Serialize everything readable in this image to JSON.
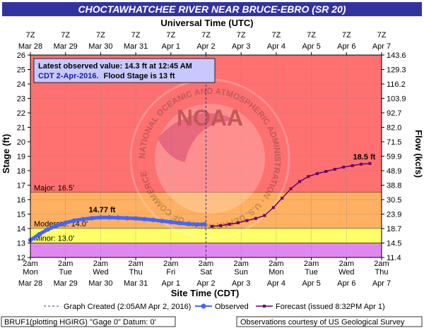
{
  "title": "CHOCTAWHATCHEE RIVER NEAR BRUCE-EBRO (SR 20)",
  "top_axis_title": "Universal Time (UTC)",
  "bottom_axis_title": "Site Time (CDT)",
  "left_axis_title": "Stage (ft)",
  "right_axis_title": "Flow (kcfs)",
  "info_box": {
    "line1": "Latest observed value: 14.3 ft at 12:45 AM",
    "line2_plain": "CDT 2-Apr-2016.",
    "line2_bold": "Flood Stage is 13 ft"
  },
  "footer": {
    "legend_created": "Graph Created (2:05AM Apr 2, 2016)",
    "legend_observed": "Observed",
    "legend_forecast": "Forecast (issued 8:32PM Apr 1)",
    "left_note": "BRUF1(plotting HGIRG) \"Gage 0\" Datum: 0'",
    "right_note": "Observations courtesy of US Geological Survey"
  },
  "watermark": {
    "emblem": "NOAA",
    "ring_text": "NATIONAL OCEANIC AND ATMOSPHERIC ADMINISTRATION · U.S. DEPARTMENT OF COMMERCE"
  },
  "colors": {
    "title_bg": "#3333a0",
    "plot_bg": "#e088f0",
    "major": "#ff7070",
    "moderate": "#ffb060",
    "minor": "#ffff66",
    "observed": "#4466ff",
    "forecast": "#660066",
    "created_line": "#303090",
    "info_box_bg": "#c8c8ff",
    "info_text": "#1a1aaa"
  },
  "chart_data": {
    "type": "line",
    "title": "CHOCTAWHATCHEE RIVER NEAR BRUCE-EBRO (SR 20)",
    "xlabel": "Site Time (CDT)",
    "ylabel": "Stage (ft)",
    "y2label": "Flow (kcfs)",
    "x2label": "Universal Time (UTC)",
    "ylim": [
      12,
      26
    ],
    "y_ticks": [
      12,
      13,
      14,
      15,
      16,
      17,
      18,
      19,
      20,
      21,
      22,
      23,
      24,
      25,
      26
    ],
    "y2_tick_labels": [
      "11.4",
      "14.5",
      "18.7",
      "23.9",
      "30.5",
      "38.8",
      "48.9",
      "59.9",
      "71.5",
      "82.0",
      "92.7",
      "103.9",
      "116.2",
      "129.3",
      "143.6"
    ],
    "x_range_hours": [
      0,
      240
    ],
    "x_ticks": [
      {
        "hour": 0,
        "time": "2am",
        "day": "Mon",
        "date": "Mar 28",
        "utc_time": "7Z",
        "utc_date": "Mar 28"
      },
      {
        "hour": 24,
        "time": "2am",
        "day": "Tue",
        "date": "Mar 29",
        "utc_time": "7Z",
        "utc_date": "Mar 29"
      },
      {
        "hour": 48,
        "time": "2am",
        "day": "Wed",
        "date": "Mar 30",
        "utc_time": "7Z",
        "utc_date": "Mar 30"
      },
      {
        "hour": 72,
        "time": "2am",
        "day": "Thu",
        "date": "Mar 31",
        "utc_time": "7Z",
        "utc_date": "Mar 31"
      },
      {
        "hour": 96,
        "time": "2am",
        "day": "Fri",
        "date": "Apr 1",
        "utc_time": "7Z",
        "utc_date": "Apr 1"
      },
      {
        "hour": 120,
        "time": "2am",
        "day": "Sat",
        "date": "Apr 2",
        "utc_time": "7Z",
        "utc_date": "Apr 2"
      },
      {
        "hour": 144,
        "time": "2am",
        "day": "Sun",
        "date": "Apr 3",
        "utc_time": "7Z",
        "utc_date": "Apr 3"
      },
      {
        "hour": 168,
        "time": "2am",
        "day": "Mon",
        "date": "Apr 4",
        "utc_time": "7Z",
        "utc_date": "Apr 4"
      },
      {
        "hour": 192,
        "time": "2am",
        "day": "Tue",
        "date": "Apr 5",
        "utc_time": "7Z",
        "utc_date": "Apr 5"
      },
      {
        "hour": 216,
        "time": "2am",
        "day": "Wed",
        "date": "Apr 6",
        "utc_time": "7Z",
        "utc_date": "Apr 6"
      },
      {
        "hour": 240,
        "time": "2am",
        "day": "Thu",
        "date": "Apr 7",
        "utc_time": "7Z",
        "utc_date": "Apr 7"
      }
    ],
    "flood_categories": [
      {
        "name": "Major",
        "label": "Major: 16.5'",
        "from": 16.5,
        "to": 26
      },
      {
        "name": "Moderate",
        "label": "Moderate: 14.0'",
        "from": 14.0,
        "to": 16.5
      },
      {
        "name": "Minor",
        "label": "Minor: 13.0'",
        "from": 13.0,
        "to": 14.0
      }
    ],
    "flood_stage": 13,
    "graph_created_hour": 120,
    "series": [
      {
        "name": "Observed",
        "x": [
          0,
          6,
          12,
          18,
          24,
          30,
          36,
          42,
          48,
          54,
          60,
          66,
          72,
          78,
          84,
          90,
          96,
          102,
          108,
          114,
          119
        ],
        "y": [
          13.2,
          13.6,
          13.95,
          14.2,
          14.4,
          14.55,
          14.65,
          14.72,
          14.77,
          14.77,
          14.75,
          14.72,
          14.7,
          14.65,
          14.6,
          14.52,
          14.45,
          14.38,
          14.32,
          14.28,
          14.3
        ],
        "peak_label": "14.77 ft",
        "peak_index": 8
      },
      {
        "name": "Forecast",
        "x": [
          124,
          130,
          136,
          142,
          148,
          154,
          160,
          166,
          172,
          178,
          184,
          190,
          196,
          202,
          208,
          214,
          220,
          226,
          232
        ],
        "y": [
          14.15,
          14.2,
          14.3,
          14.4,
          14.55,
          14.7,
          14.9,
          15.45,
          16.1,
          16.75,
          17.25,
          17.6,
          17.8,
          17.95,
          18.1,
          18.25,
          18.35,
          18.45,
          18.5
        ],
        "peak_label": "18.5 ft",
        "peak_index": 18
      }
    ]
  }
}
